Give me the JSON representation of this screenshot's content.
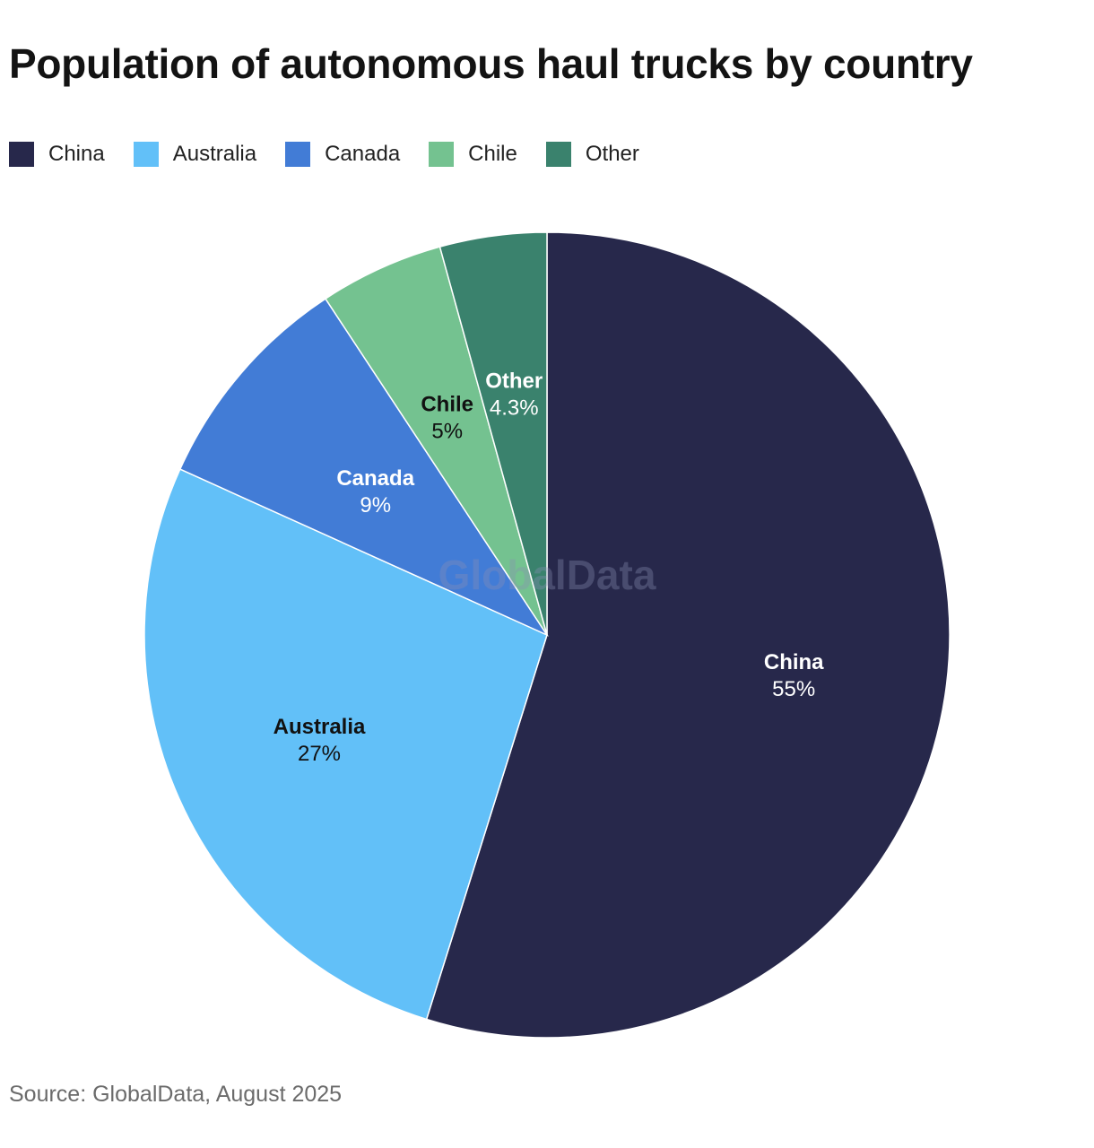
{
  "title": "Population of autonomous haul trucks by country",
  "source": "Source: GlobalData, August 2025",
  "watermark": "GlobalData",
  "chart_data": {
    "type": "pie",
    "title": "Population of autonomous haul trucks by country",
    "legend_position": "top-left",
    "start_direction": "12 o'clock, clockwise",
    "slices": [
      {
        "label": "China",
        "value": 55,
        "value_label": "55%",
        "color": "#27284b",
        "text_color": "#ffffff"
      },
      {
        "label": "Australia",
        "value": 27,
        "value_label": "27%",
        "color": "#62c0f8",
        "text_color": "#111111"
      },
      {
        "label": "Canada",
        "value": 9,
        "value_label": "9%",
        "color": "#427cd6",
        "text_color": "#ffffff"
      },
      {
        "label": "Chile",
        "value": 5,
        "value_label": "5%",
        "color": "#74c290",
        "text_color": "#111111"
      },
      {
        "label": "Other",
        "value": 4.3,
        "value_label": "4.3%",
        "color": "#3a826d",
        "text_color": "#ffffff"
      }
    ]
  }
}
